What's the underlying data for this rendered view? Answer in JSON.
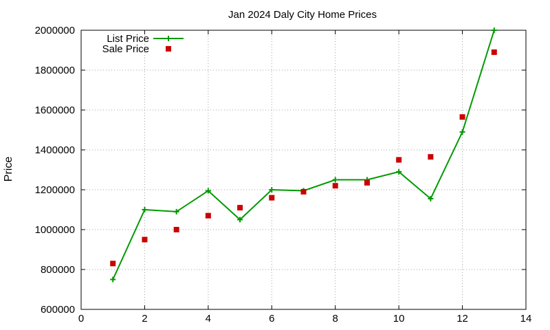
{
  "chart_data": {
    "type": "line",
    "title": "Jan 2024 Daly City Home Prices",
    "xlabel": "",
    "ylabel": "Price",
    "xlim": [
      0,
      14
    ],
    "ylim": [
      600000,
      2000000
    ],
    "xticks": [
      0,
      2,
      4,
      6,
      8,
      10,
      12,
      14
    ],
    "yticks": [
      600000,
      800000,
      1000000,
      1200000,
      1400000,
      1600000,
      1800000,
      2000000
    ],
    "grid": true,
    "legend_position": "top-left",
    "series": [
      {
        "name": "List Price",
        "style": "line+plus-markers",
        "color": "#009900",
        "x": [
          1,
          2,
          3,
          4,
          5,
          6,
          7,
          8,
          9,
          10,
          11,
          12,
          13
        ],
        "y": [
          750000,
          1100000,
          1090000,
          1195000,
          1050000,
          1200000,
          1195000,
          1250000,
          1250000,
          1290000,
          1155000,
          1490000,
          2000000
        ]
      },
      {
        "name": "Sale Price",
        "style": "square-points",
        "color": "#cc0000",
        "x": [
          1,
          2,
          3,
          4,
          5,
          6,
          7,
          8,
          9,
          10,
          11,
          12,
          13
        ],
        "y": [
          830000,
          950000,
          1000000,
          1070000,
          1110000,
          1160000,
          1190000,
          1220000,
          1235000,
          1350000,
          1365000,
          1565000,
          1890000
        ]
      }
    ]
  }
}
